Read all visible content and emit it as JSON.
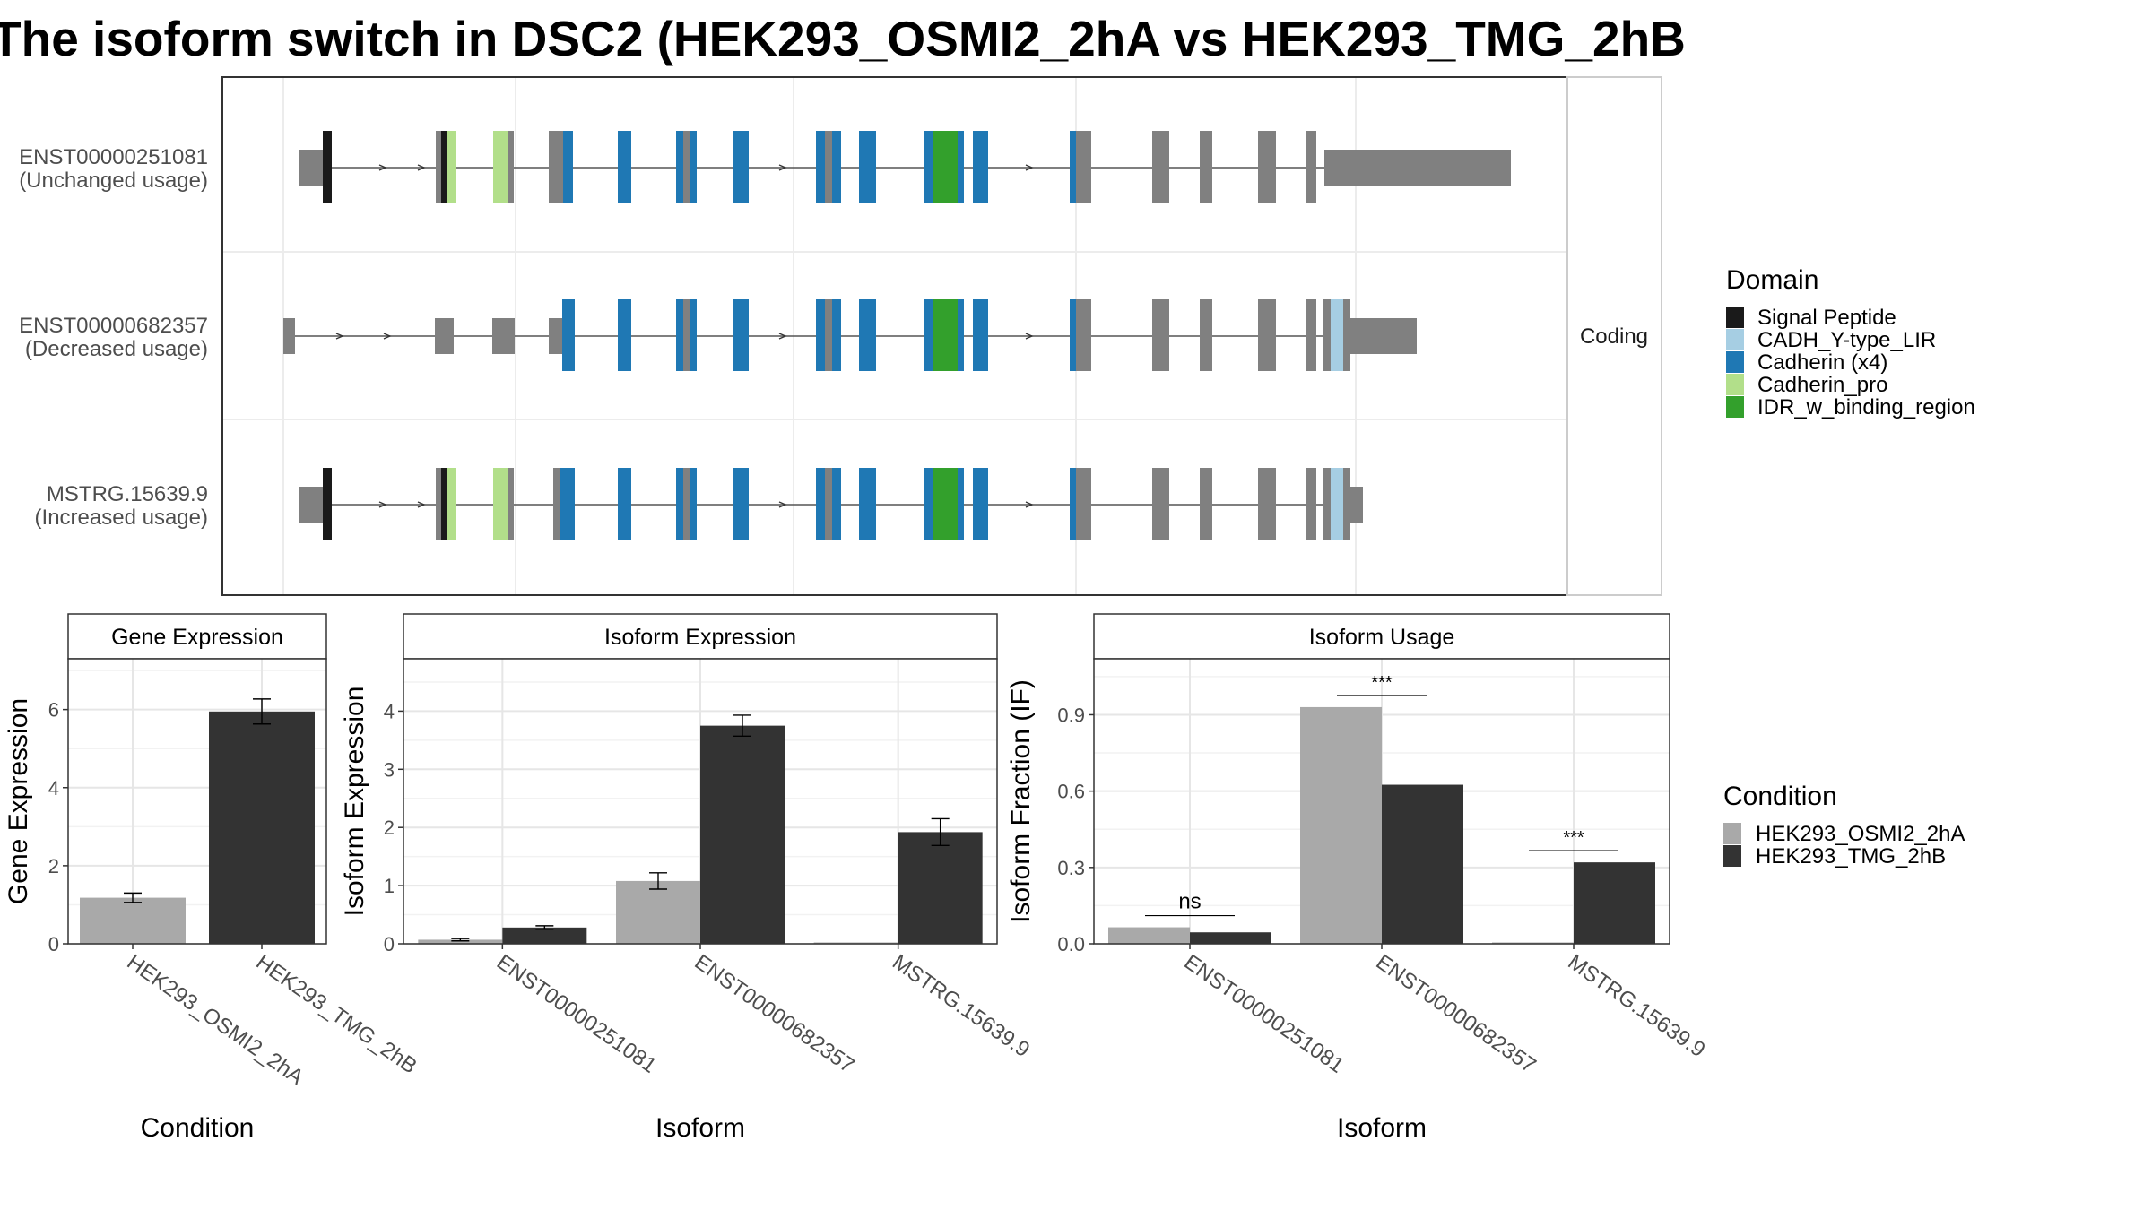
{
  "title": "The isoform switch in DSC2 (HEK293_OSMI2_2hA vs HEK293_TMG_2hB",
  "colors": {
    "signal_peptide": "#1a1a1a",
    "cadh_lir": "#a6cee3",
    "cadherin": "#1f78b4",
    "cadherin_pro": "#b2df8a",
    "idr": "#33a02c",
    "utr": "#808080",
    "cond_a": "#a9a9a9",
    "cond_b": "#333333"
  },
  "structure": {
    "facet_label": "Coding",
    "transcripts": [
      {
        "id": "ENST00000251081",
        "usage": "(Unchanged usage)"
      },
      {
        "id": "ENST00000682357",
        "usage": "(Decreased usage)"
      },
      {
        "id": "MSTRG.15639.9",
        "usage": "(Increased usage)"
      }
    ]
  },
  "legend_domain": {
    "title": "Domain",
    "items": [
      {
        "label": "Signal Peptide",
        "color": "#1a1a1a"
      },
      {
        "label": "CADH_Y-type_LIR",
        "color": "#a6cee3"
      },
      {
        "label": "Cadherin (x4)",
        "color": "#1f78b4"
      },
      {
        "label": "Cadherin_pro",
        "color": "#b2df8a"
      },
      {
        "label": "IDR_w_binding_region",
        "color": "#33a02c"
      }
    ]
  },
  "legend_condition": {
    "title": "Condition",
    "items": [
      {
        "label": "HEK293_OSMI2_2hA",
        "color": "#a9a9a9"
      },
      {
        "label": "HEK293_TMG_2hB",
        "color": "#333333"
      }
    ]
  },
  "chart_data": [
    {
      "type": "bar",
      "title": "Gene Expression",
      "xlabel": "Condition",
      "ylabel": "Gene Expression",
      "categories": [
        "HEK293_OSMI2_2hA",
        "HEK293_TMG_2hB"
      ],
      "values": [
        1.18,
        5.95
      ],
      "errors": [
        0.12,
        0.32
      ],
      "ylim": [
        0,
        7.3
      ],
      "yticks": [
        "0",
        "2",
        "4",
        "6"
      ]
    },
    {
      "type": "bar",
      "title": "Isoform Expression",
      "xlabel": "Isoform",
      "ylabel": "Isoform Expression",
      "categories": [
        "ENST00000251081",
        "ENST00000682357",
        "MSTRG.15639.9"
      ],
      "series": [
        {
          "name": "HEK293_OSMI2_2hA",
          "values": [
            0.07,
            1.08,
            0.0
          ],
          "errors": [
            0.02,
            0.14,
            0.0
          ]
        },
        {
          "name": "HEK293_TMG_2hB",
          "values": [
            0.28,
            3.75,
            1.92
          ],
          "errors": [
            0.03,
            0.18,
            0.23
          ]
        }
      ],
      "ylim": [
        0,
        4.9
      ],
      "yticks": [
        "0",
        "1",
        "2",
        "3",
        "4"
      ]
    },
    {
      "type": "bar",
      "title": "Isoform Usage",
      "xlabel": "Isoform",
      "ylabel": "Isoform Fraction (IF)",
      "categories": [
        "ENST00000251081",
        "ENST00000682357",
        "MSTRG.15639.9"
      ],
      "series": [
        {
          "name": "HEK293_OSMI2_2hA",
          "values": [
            0.065,
            0.93,
            0.0
          ]
        },
        {
          "name": "HEK293_TMG_2hB",
          "values": [
            0.045,
            0.625,
            0.32
          ]
        }
      ],
      "significance": [
        "ns",
        "***",
        "***"
      ],
      "ylim": [
        0,
        1.12
      ],
      "yticks": [
        "0.0",
        "0.3",
        "0.6",
        "0.9"
      ]
    }
  ]
}
